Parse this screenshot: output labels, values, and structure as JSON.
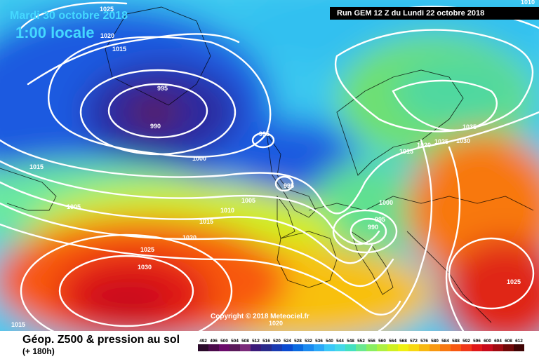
{
  "header": {
    "date": "Mardi 30 octobre 2018",
    "time": "1:00 locale",
    "run": "Run GEM 12 Z du Lundi 22 octobre 2018"
  },
  "copyright": "Copyright © 2018 Meteociel.fr",
  "footer": {
    "title": "Géop. Z500 & pression au sol",
    "subtitle": "(+ 180h)"
  },
  "isobar_labels": [
    "1025",
    "1020",
    "1015",
    "995",
    "990",
    "995",
    "1000",
    "995",
    "1015",
    "1005",
    "1010",
    "1005",
    "1015",
    "1020",
    "1025",
    "1030",
    "1015",
    "1020",
    "995",
    "990",
    "1000",
    "1015",
    "1020",
    "1025",
    "1030",
    "1035",
    "1025",
    "1010"
  ],
  "legend": {
    "values": [
      "492",
      "496",
      "500",
      "504",
      "508",
      "512",
      "516",
      "520",
      "524",
      "528",
      "532",
      "536",
      "540",
      "544",
      "548",
      "552",
      "556",
      "560",
      "564",
      "568",
      "572",
      "576",
      "580",
      "584",
      "588",
      "592",
      "596",
      "600",
      "604",
      "608",
      "612"
    ],
    "colors": [
      "#2a0a2a",
      "#4b0a4b",
      "#6b0b6b",
      "#5a1a5a",
      "#7a2a7a",
      "#3b1a7a",
      "#2a2a8a",
      "#1a3ab0",
      "#0a4ad0",
      "#0a6ae0",
      "#1a8af0",
      "#2aa8f8",
      "#3ac8f8",
      "#44d8e8",
      "#44e0c0",
      "#6ae890",
      "#8aee60",
      "#aef040",
      "#d0f020",
      "#f0f010",
      "#f8d810",
      "#f8b810",
      "#f89810",
      "#f87810",
      "#f85810",
      "#f03818",
      "#e01818",
      "#c80a1a",
      "#a00a10",
      "#700808",
      "#400404"
    ]
  }
}
